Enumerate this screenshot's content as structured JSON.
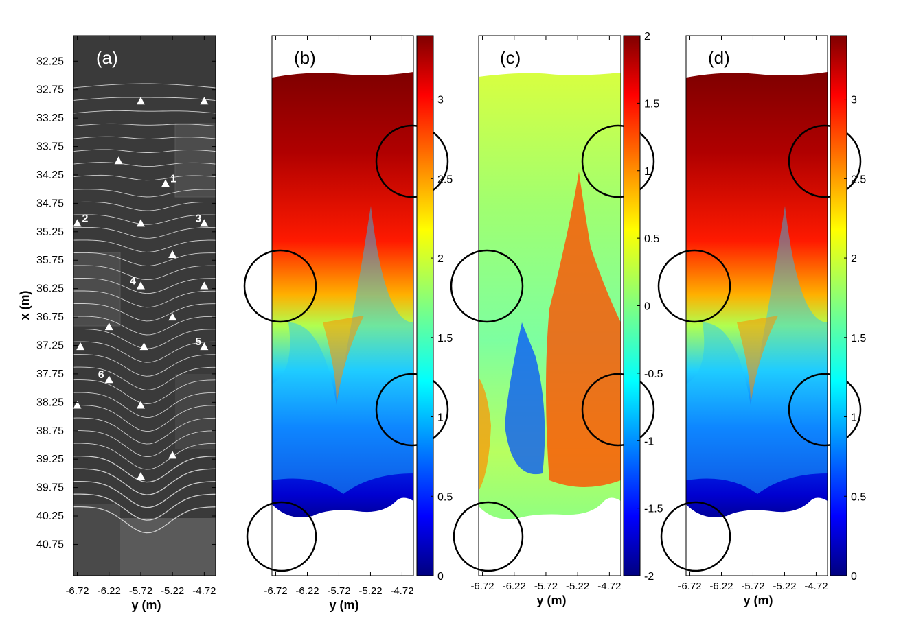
{
  "chart_data": [
    {
      "panel": "(a)",
      "type": "image",
      "xlabel": "y (m)",
      "ylabel": "x (m)",
      "xticks": [
        "-6.72",
        "-6.22",
        "-5.72",
        "-5.22",
        "-4.72"
      ],
      "xlim": [
        -6.78,
        -4.54
      ],
      "ylim": [
        31.8,
        41.3
      ],
      "yticks": [
        "32.25",
        "32.75",
        "33.25",
        "33.75",
        "34.25",
        "34.75",
        "35.25",
        "35.75",
        "36.25",
        "36.75",
        "37.25",
        "37.75",
        "38.25",
        "38.75",
        "39.25",
        "39.75",
        "40.25",
        "40.75"
      ],
      "gauges": [
        {
          "y": -5.72,
          "x": 32.95,
          "label": ""
        },
        {
          "y": -4.72,
          "x": 32.95,
          "label": ""
        },
        {
          "y": -6.07,
          "x": 34.0,
          "label": ""
        },
        {
          "y": -5.33,
          "x": 34.4,
          "label": "1"
        },
        {
          "y": -6.72,
          "x": 35.1,
          "label": "2"
        },
        {
          "y": -5.72,
          "x": 35.1,
          "label": ""
        },
        {
          "y": -4.72,
          "x": 35.1,
          "label": "3"
        },
        {
          "y": -5.22,
          "x": 35.65,
          "label": ""
        },
        {
          "y": -5.72,
          "x": 36.2,
          "label": "4"
        },
        {
          "y": -4.72,
          "x": 36.2,
          "label": ""
        },
        {
          "y": -5.22,
          "x": 36.75,
          "label": ""
        },
        {
          "y": -6.22,
          "x": 36.92,
          "label": ""
        },
        {
          "y": -6.67,
          "x": 37.27,
          "label": ""
        },
        {
          "y": -5.67,
          "x": 37.27,
          "label": ""
        },
        {
          "y": -4.72,
          "x": 37.27,
          "label": "5"
        },
        {
          "y": -6.22,
          "x": 37.85,
          "label": "6"
        },
        {
          "y": -6.72,
          "x": 38.3,
          "label": ""
        },
        {
          "y": -5.72,
          "x": 38.3,
          "label": ""
        },
        {
          "y": -5.22,
          "x": 39.18,
          "label": ""
        },
        {
          "y": -5.72,
          "x": 39.55,
          "label": ""
        }
      ]
    },
    {
      "panel": "(b)",
      "type": "heatmap",
      "xlabel": "y (m)",
      "xticks": [
        "-6.72",
        "-6.22",
        "-5.72",
        "-5.22",
        "-4.72"
      ],
      "colorbar": {
        "min": 0,
        "max": 3.4,
        "ticks": [
          "0",
          "0.5",
          "1",
          "1.5",
          "2",
          "2.5",
          "3"
        ]
      }
    },
    {
      "panel": "(c)",
      "type": "heatmap",
      "xlabel": "y (m)",
      "xticks": [
        "-6.72",
        "-6.22",
        "-5.72",
        "-5.22",
        "-4.72"
      ],
      "colorbar": {
        "min": -2,
        "max": 2,
        "ticks": [
          "-2",
          "-1.5",
          "-1",
          "-0.5",
          "0",
          "0.5",
          "1",
          "1.5",
          "2"
        ]
      }
    },
    {
      "panel": "(d)",
      "type": "heatmap",
      "xlabel": "y (m)",
      "xticks": [
        "-6.72",
        "-6.22",
        "-5.72",
        "-5.22",
        "-4.72"
      ],
      "colorbar": {
        "min": 0,
        "max": 3.4,
        "ticks": [
          "0",
          "0.5",
          "1",
          "1.5",
          "2",
          "2.5",
          "3"
        ]
      }
    }
  ],
  "colors": {
    "jet": [
      "#00007f",
      "#0000ff",
      "#0080ff",
      "#00ffff",
      "#80ff80",
      "#ffff00",
      "#ff8000",
      "#ff0000",
      "#7f0000"
    ],
    "photo_bg": "#3a3a3a",
    "contour": "#e8e8e8"
  }
}
